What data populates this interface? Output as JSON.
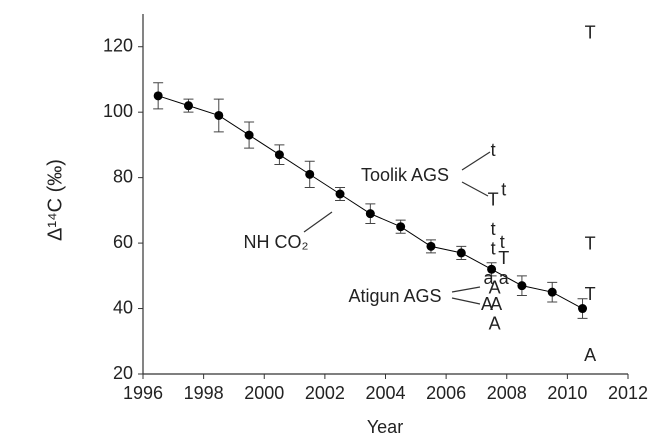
{
  "chart_data": {
    "type": "line",
    "x_label": "Year",
    "y_label": "Δ¹⁴C (‰)",
    "xlim": [
      1996,
      2012
    ],
    "ylim": [
      20,
      130
    ],
    "xticks": [
      1996,
      1998,
      2000,
      2002,
      2004,
      2006,
      2008,
      2010,
      2012
    ],
    "yticks": [
      20,
      40,
      60,
      80,
      100,
      120
    ],
    "color": "#000000",
    "x": [
      1996.5,
      1997.5,
      1998.5,
      1999.5,
      2000.5,
      2001.5,
      2002.5,
      2003.5,
      2004.5,
      2005.5,
      2006.5,
      2007.5,
      2008.5,
      2009.5,
      2010.5
    ],
    "values": [
      105,
      102,
      99,
      93,
      87,
      81,
      75,
      69,
      65,
      59,
      57,
      52,
      47,
      45,
      40
    ],
    "errors": [
      4,
      2,
      5,
      4,
      3,
      4,
      2,
      3,
      2,
      2,
      2,
      2,
      3,
      3,
      3
    ],
    "annotations": [
      "Toolik AGS",
      "NH CO₂",
      "Atigun AGS"
    ],
    "letter_points": [
      {
        "label": "t",
        "x": 2007.55,
        "y": 88
      },
      {
        "label": "T",
        "x": 2007.55,
        "y": 73
      },
      {
        "label": "t",
        "x": 2007.9,
        "y": 76
      },
      {
        "label": "t",
        "x": 2007.55,
        "y": 64
      },
      {
        "label": "t",
        "x": 2007.55,
        "y": 58
      },
      {
        "label": "t",
        "x": 2007.85,
        "y": 60
      },
      {
        "label": "T",
        "x": 2007.9,
        "y": 55
      },
      {
        "label": "a",
        "x": 2007.4,
        "y": 49
      },
      {
        "label": "a",
        "x": 2007.9,
        "y": 49
      },
      {
        "label": "A",
        "x": 2007.6,
        "y": 46
      },
      {
        "label": "A",
        "x": 2007.35,
        "y": 41
      },
      {
        "label": "A",
        "x": 2007.65,
        "y": 41
      },
      {
        "label": "A",
        "x": 2007.6,
        "y": 35
      },
      {
        "label": "T",
        "x": 2010.75,
        "y": 124
      },
      {
        "label": "T",
        "x": 2010.75,
        "y": 59.5
      },
      {
        "label": "T",
        "x": 2010.75,
        "y": 44
      },
      {
        "label": "A",
        "x": 2010.75,
        "y": 25.5
      }
    ]
  }
}
